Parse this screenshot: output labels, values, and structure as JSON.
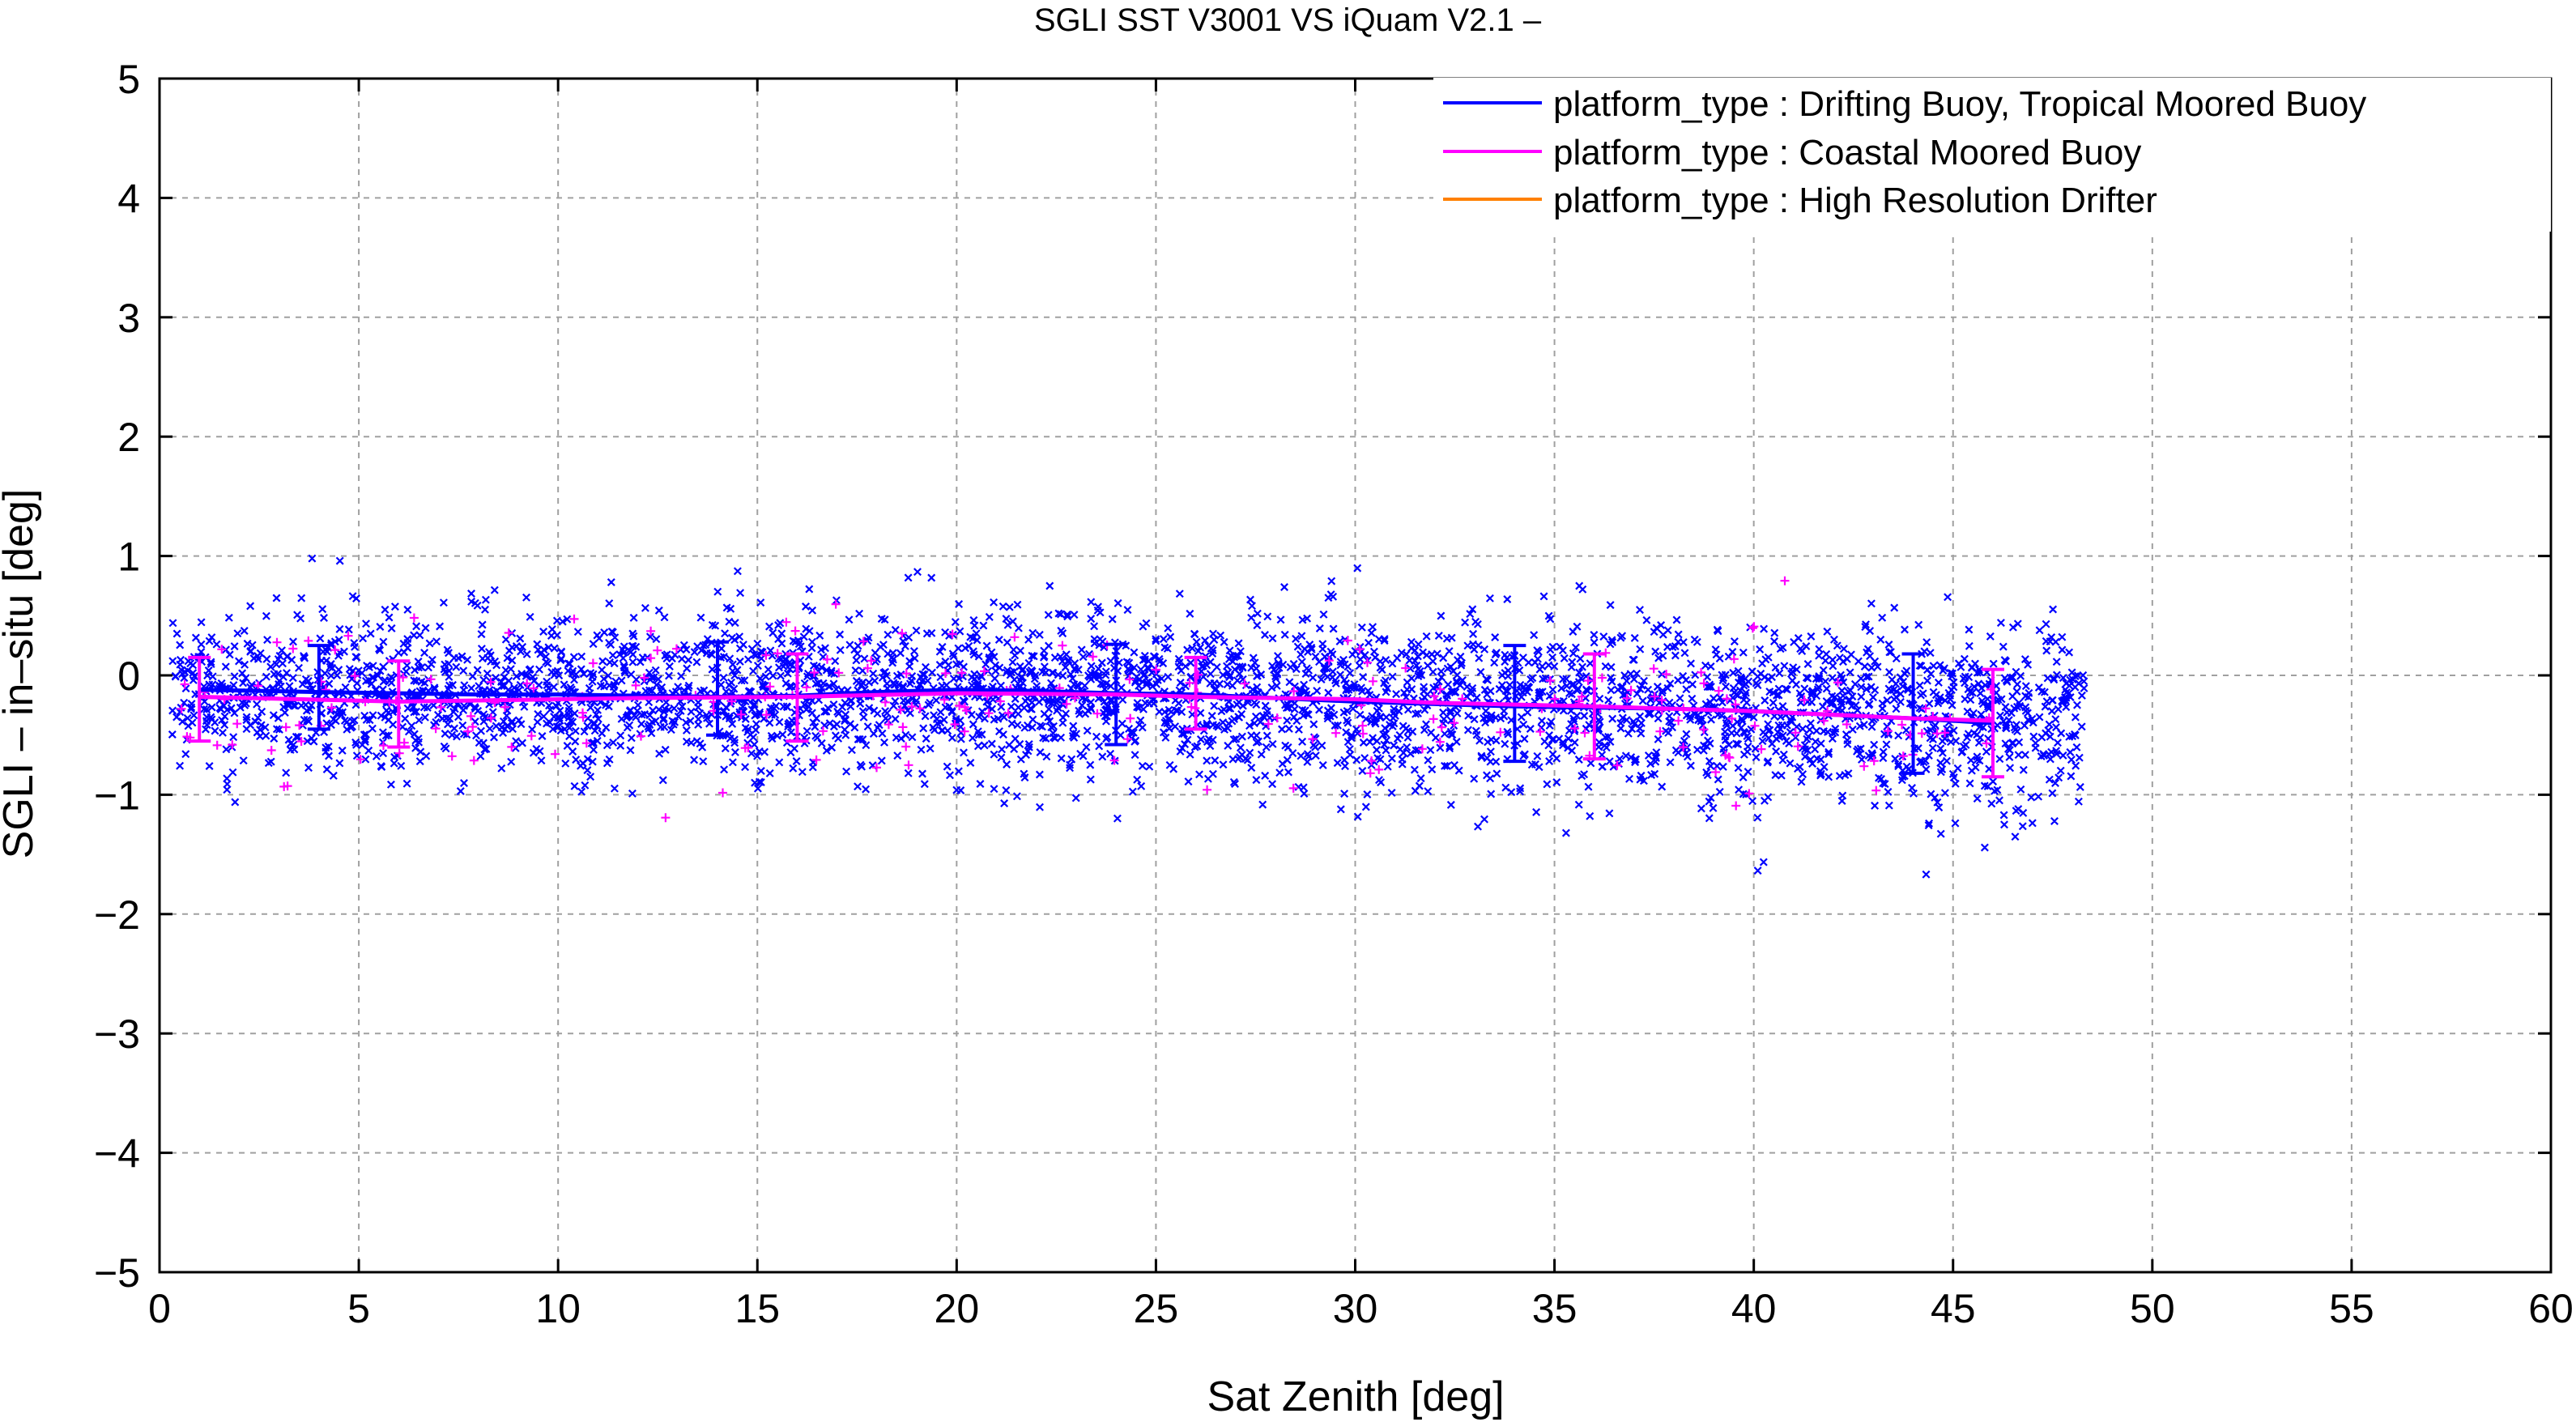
{
  "chart_data": {
    "type": "scatter",
    "title": "SGLI SST V3001 VS iQuam V2.1  –",
    "xlabel": "Sat Zenith [deg]",
    "ylabel": "SGLI – in–situ [deg]",
    "xlim": [
      0,
      60
    ],
    "ylim": [
      -5,
      5
    ],
    "x_ticks": [
      "0",
      "5",
      "10",
      "15",
      "20",
      "25",
      "30",
      "35",
      "40",
      "45",
      "50",
      "55",
      "60"
    ],
    "y_ticks": [
      "−5",
      "−4",
      "−3",
      "−2",
      "−1",
      "0",
      "1",
      "2",
      "3",
      "4",
      "5"
    ],
    "grid": true,
    "legend_position": "top-right",
    "series": [
      {
        "name": "platform_type : Drifting Buoy, Tropical Moored Buoy",
        "color": "#0000ff",
        "marker": "x",
        "x_range": [
          0.3,
          48.3
        ],
        "point_count": 3800,
        "mean_line": {
          "x": [
            1,
            4,
            6,
            8,
            10,
            12,
            14,
            16,
            18,
            20,
            22,
            24,
            26,
            28,
            30,
            32,
            34,
            36,
            38,
            40,
            42,
            44,
            46
          ],
          "y": [
            -0.12,
            -0.14,
            -0.15,
            -0.16,
            -0.16,
            -0.17,
            -0.18,
            -0.17,
            -0.14,
            -0.12,
            -0.13,
            -0.15,
            -0.16,
            -0.19,
            -0.22,
            -0.24,
            -0.26,
            -0.27,
            -0.28,
            -0.3,
            -0.33,
            -0.36,
            -0.4
          ]
        },
        "error_bars": [
          {
            "x": 4,
            "low": -0.45,
            "high": 0.25
          },
          {
            "x": 14,
            "low": -0.5,
            "high": 0.28
          },
          {
            "x": 24,
            "low": -0.58,
            "high": 0.26
          },
          {
            "x": 34,
            "low": -0.72,
            "high": 0.25
          },
          {
            "x": 44,
            "low": -0.82,
            "high": 0.18
          }
        ]
      },
      {
        "name": "platform_type : Coastal Moored Buoy",
        "color": "#ff00ff",
        "marker": "+",
        "x_range": [
          0.3,
          46
        ],
        "point_count": 240,
        "mean_line": {
          "x": [
            1,
            6,
            8,
            10,
            12,
            16,
            20,
            24,
            26,
            28,
            30,
            32,
            36,
            40,
            44,
            46
          ],
          "y": [
            -0.18,
            -0.22,
            -0.21,
            -0.2,
            -0.19,
            -0.18,
            -0.15,
            -0.16,
            -0.18,
            -0.19,
            -0.2,
            -0.23,
            -0.26,
            -0.3,
            -0.36,
            -0.38
          ]
        },
        "error_bars": [
          {
            "x": 1,
            "low": -0.55,
            "high": 0.15
          },
          {
            "x": 6,
            "low": -0.6,
            "high": 0.12
          },
          {
            "x": 16,
            "low": -0.55,
            "high": 0.18
          },
          {
            "x": 26,
            "low": -0.45,
            "high": 0.15
          },
          {
            "x": 36,
            "low": -0.7,
            "high": 0.18
          },
          {
            "x": 46,
            "low": -0.85,
            "high": 0.05
          }
        ]
      },
      {
        "name": "platform_type : High Resolution Drifter",
        "color": "#ff8000",
        "marker": "x",
        "point_count": 0
      }
    ]
  }
}
